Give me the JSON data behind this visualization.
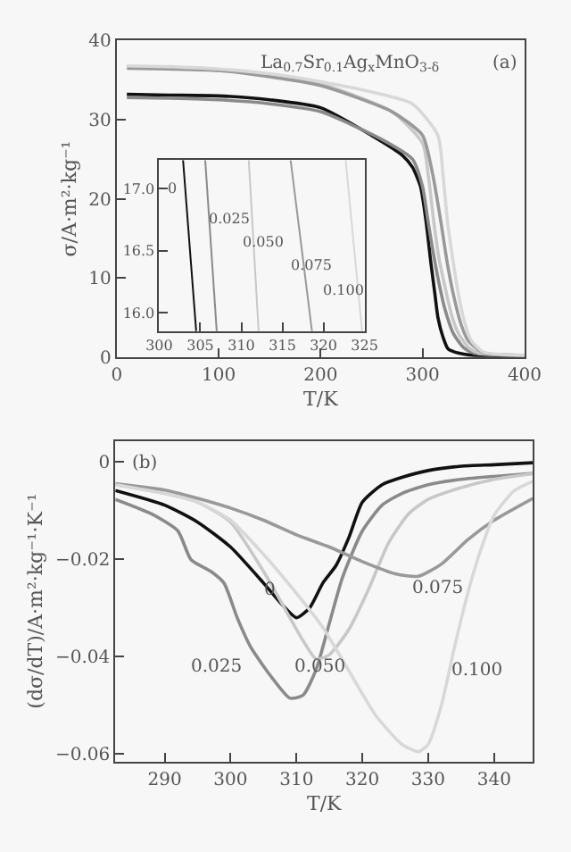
{
  "chart_data": [
    {
      "type": "line",
      "xlabel": "T/K",
      "ylabel": "σ/A·m²·kg⁻¹",
      "annotations": [
        "La$_{0.7}$Sr$_{0.1}$Ag$_{x}$MnO$_{3-δ}$",
        "(a)"
      ],
      "xlim": [
        0,
        400
      ],
      "ylim": [
        0,
        40
      ],
      "xticks": [
        0,
        100,
        200,
        300,
        400
      ],
      "yticks": [
        0,
        10,
        20,
        30,
        40
      ],
      "grid": false,
      "series": [
        {
          "color": "#111111",
          "x": [
            10,
            50,
            100,
            150,
            200,
            250,
            280,
            290,
            298,
            303.5,
            308,
            312,
            315,
            320,
            325,
            335,
            350,
            400
          ],
          "values": [
            33.2,
            33.1,
            33,
            32.5,
            31.5,
            28,
            25.5,
            24,
            21.5,
            17,
            12,
            8,
            5,
            2.5,
            1,
            0.5,
            0.2,
            0.1
          ]
        },
        {
          "color": "#8a8a8a",
          "x": [
            10,
            50,
            100,
            150,
            200,
            260,
            290,
            300,
            305.5,
            310,
            315,
            322,
            330,
            340,
            350,
            400
          ],
          "values": [
            32.8,
            32.7,
            32.5,
            32,
            31,
            27.5,
            25,
            21.5,
            17,
            13.5,
            10,
            6,
            3,
            1.2,
            0.5,
            0.2
          ]
        },
        {
          "color": "#c8c8c8",
          "x": [
            10,
            50,
            100,
            150,
            200,
            270,
            300,
            306,
            311,
            316,
            320,
            328,
            335,
            345,
            355,
            400
          ],
          "values": [
            36.7,
            36.6,
            36.3,
            35.6,
            34.5,
            31,
            27,
            22.5,
            17,
            12.5,
            10,
            5.5,
            3,
            1.2,
            0.5,
            0.2
          ]
        },
        {
          "color": "#999999",
          "x": [
            10,
            50,
            100,
            150,
            200,
            270,
            300,
            310,
            318,
            324,
            330,
            338,
            345,
            360,
            400
          ],
          "values": [
            36.5,
            36.4,
            36.2,
            35.4,
            34.3,
            31,
            28,
            23,
            17,
            12,
            8,
            4,
            2,
            0.5,
            0.2
          ]
        },
        {
          "color": "#d8d8d8",
          "x": [
            10,
            50,
            100,
            150,
            200,
            250,
            290,
            315,
            320,
            324.5,
            330,
            335,
            342,
            348,
            360,
            400
          ],
          "values": [
            36.8,
            36.7,
            36.4,
            35.8,
            34.8,
            33.5,
            32,
            28,
            23,
            17,
            12,
            8,
            4,
            2,
            0.6,
            0.2
          ]
        }
      ]
    },
    {
      "type": "line",
      "annotations": [
        "0",
        "0.025",
        "0.050",
        "0.075",
        "0.100"
      ],
      "xlim": [
        300,
        325
      ],
      "ylim": [
        15.85,
        17.23
      ],
      "xticks": [
        300,
        305,
        310,
        315,
        320,
        325
      ],
      "yticks": [
        {
          "value": 16,
          "label": "16.0"
        },
        {
          "value": 16.5,
          "label": "16.5"
        },
        {
          "value": 17,
          "label": "17.0"
        }
      ],
      "grid": false,
      "series": [
        {
          "color": "#111111",
          "x": [
            302.9,
            304.5
          ],
          "values": [
            17.23,
            15.85
          ]
        },
        {
          "color": "#8a8a8a",
          "x": [
            305.6,
            307.0
          ],
          "values": [
            17.23,
            15.85
          ]
        },
        {
          "color": "#c8c8c8",
          "x": [
            310.9,
            312.1
          ],
          "values": [
            17.23,
            15.85
          ]
        },
        {
          "color": "#999999",
          "x": [
            316.0,
            318.6
          ],
          "values": [
            17.23,
            15.85
          ]
        },
        {
          "color": "#d8d8d8",
          "x": [
            322.7,
            324.7
          ],
          "values": [
            17.23,
            15.85
          ]
        }
      ]
    },
    {
      "type": "line",
      "xlabel": "T/K",
      "ylabel": "(dσ/dT)/A·m²·kg⁻¹·K⁻¹",
      "annotations": [
        "(b)",
        "0",
        "0.025",
        "0.050",
        "0.075",
        "0.100"
      ],
      "xlim": [
        282.5,
        345.9
      ],
      "ylim": [
        -0.0615,
        0.0043
      ],
      "xticks": [
        290,
        300,
        310,
        320,
        330,
        340
      ],
      "yticks": [
        0,
        {
          "value": -0.02,
          "label": "−0.02"
        },
        {
          "value": -0.04,
          "label": "−0.04"
        },
        {
          "value": -0.06,
          "label": "−0.06"
        }
      ],
      "grid": false,
      "series": [
        {
          "color": "#111111",
          "x": [
            282.5,
            290,
            295,
            300,
            305,
            308,
            310,
            312,
            314,
            316,
            318,
            320,
            323,
            326,
            330,
            335,
            340,
            345.9
          ],
          "values": [
            -0.0059,
            -0.0089,
            -0.0124,
            -0.0175,
            -0.0249,
            -0.0296,
            -0.032,
            -0.03,
            -0.0249,
            -0.0213,
            -0.0154,
            -0.0083,
            -0.0047,
            -0.0032,
            -0.0018,
            -0.0009,
            -0.0006,
            -0.0002
          ]
        },
        {
          "color": "#8a8a8a",
          "x": [
            282.5,
            288,
            292,
            294,
            297,
            299,
            301,
            303,
            306,
            309,
            311,
            313,
            315,
            317,
            320,
            323,
            326,
            330,
            335,
            340,
            345.9
          ],
          "values": [
            -0.0077,
            -0.0107,
            -0.0142,
            -0.0201,
            -0.0225,
            -0.0249,
            -0.032,
            -0.0379,
            -0.0438,
            -0.0485,
            -0.0479,
            -0.0426,
            -0.0331,
            -0.0237,
            -0.0142,
            -0.0089,
            -0.0065,
            -0.0047,
            -0.0036,
            -0.003,
            -0.0024
          ]
        },
        {
          "color": "#c8c8c8",
          "x": [
            282.5,
            290,
            295,
            300,
            305,
            308,
            311,
            313,
            315,
            318,
            321,
            324,
            327,
            330,
            335,
            340,
            345.9
          ],
          "values": [
            -0.0047,
            -0.0065,
            -0.0083,
            -0.0124,
            -0.0225,
            -0.0296,
            -0.0367,
            -0.0405,
            -0.0396,
            -0.0343,
            -0.026,
            -0.0166,
            -0.0107,
            -0.0077,
            -0.0053,
            -0.0036,
            -0.0024
          ]
        },
        {
          "color": "#999999",
          "x": [
            282.5,
            290,
            295,
            300,
            305,
            310,
            315,
            320,
            325,
            328.5,
            332,
            336,
            340,
            345.9
          ],
          "values": [
            -0.0045,
            -0.0058,
            -0.0075,
            -0.0095,
            -0.012,
            -0.015,
            -0.0175,
            -0.0205,
            -0.023,
            -0.0235,
            -0.021,
            -0.016,
            -0.012,
            -0.0075
          ]
        },
        {
          "color": "#d8d8d8",
          "x": [
            282.5,
            290,
            295,
            300,
            305,
            310,
            314,
            318,
            322,
            326,
            328.5,
            330,
            332,
            334,
            336,
            338,
            340,
            343,
            345.9
          ],
          "values": [
            -0.0047,
            -0.0065,
            -0.0083,
            -0.012,
            -0.019,
            -0.027,
            -0.034,
            -0.043,
            -0.052,
            -0.058,
            -0.0595,
            -0.058,
            -0.05,
            -0.038,
            -0.027,
            -0.018,
            -0.011,
            -0.006,
            -0.004
          ]
        }
      ]
    }
  ]
}
